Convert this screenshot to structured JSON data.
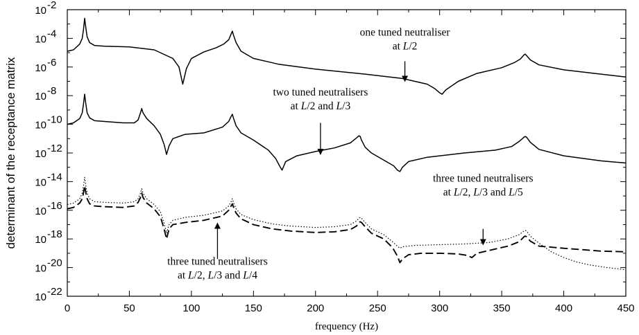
{
  "chart_data": {
    "type": "line",
    "xlabel": "frequency (Hz)",
    "ylabel": "determinant of the receptance matrix",
    "xlim": [
      0,
      450
    ],
    "ylim_exponent": [
      -22,
      -2
    ],
    "y_scale": "log",
    "x_ticks": [
      0,
      50,
      100,
      150,
      200,
      250,
      300,
      350,
      400,
      450
    ],
    "y_tick_exponents": [
      -22,
      -20,
      -18,
      -16,
      -14,
      -12,
      -10,
      -8,
      -6,
      -4,
      -2
    ],
    "y_tick_base": "10",
    "grid": false,
    "series": [
      {
        "style": "solid",
        "x": [
          0,
          5,
          10,
          12,
          13,
          14,
          15,
          16,
          18,
          22,
          30,
          50,
          70,
          85,
          90,
          93,
          96,
          100,
          110,
          120,
          126,
          130,
          132,
          133,
          134,
          136,
          140,
          150,
          170,
          200,
          240,
          270,
          290,
          296,
          300,
          302,
          305,
          315,
          330,
          350,
          360,
          365,
          368,
          369,
          370,
          373,
          380,
          400,
          430,
          450
        ],
        "exp": [
          -4.9,
          -4.8,
          -4.4,
          -4.0,
          -3.4,
          -2.6,
          -3.3,
          -3.9,
          -4.3,
          -4.5,
          -4.55,
          -4.6,
          -4.8,
          -5.4,
          -6.0,
          -7.2,
          -6.1,
          -5.4,
          -4.95,
          -4.65,
          -4.4,
          -4.1,
          -3.7,
          -3.5,
          -3.8,
          -4.3,
          -4.9,
          -5.4,
          -5.8,
          -6.15,
          -6.5,
          -6.8,
          -7.2,
          -7.5,
          -7.8,
          -7.9,
          -7.6,
          -7.0,
          -6.45,
          -6.05,
          -5.7,
          -5.45,
          -5.15,
          -5.1,
          -5.2,
          -5.5,
          -5.85,
          -6.2,
          -6.5,
          -6.7
        ]
      },
      {
        "style": "solid",
        "x": [
          0,
          5,
          10,
          12,
          13,
          14,
          15,
          16,
          18,
          22,
          30,
          45,
          54,
          57,
          59,
          60,
          61,
          64,
          70,
          75,
          78,
          80,
          82,
          85,
          95,
          110,
          125,
          130,
          132,
          133,
          134,
          136,
          140,
          150,
          162,
          168,
          171,
          173,
          176,
          185,
          200,
          215,
          228,
          233,
          235,
          236,
          237,
          240,
          245,
          255,
          263,
          266,
          268,
          270,
          275,
          290,
          320,
          345,
          358,
          364,
          368,
          369,
          370,
          373,
          380,
          400,
          430,
          450
        ],
        "exp": [
          -10.0,
          -9.9,
          -9.6,
          -9.2,
          -8.6,
          -7.9,
          -8.6,
          -9.2,
          -9.55,
          -9.75,
          -9.8,
          -9.9,
          -9.9,
          -9.7,
          -9.2,
          -8.9,
          -9.2,
          -9.6,
          -10.1,
          -10.7,
          -11.4,
          -12.1,
          -11.5,
          -11.0,
          -10.7,
          -10.6,
          -10.2,
          -9.8,
          -9.45,
          -9.3,
          -9.6,
          -10.1,
          -10.6,
          -11.1,
          -11.8,
          -12.4,
          -12.9,
          -13.2,
          -12.6,
          -12.2,
          -11.9,
          -11.65,
          -11.3,
          -10.95,
          -10.8,
          -10.85,
          -11.1,
          -11.6,
          -12.0,
          -12.5,
          -12.9,
          -13.2,
          -13.3,
          -13.0,
          -12.6,
          -12.3,
          -12.0,
          -11.8,
          -11.55,
          -11.2,
          -10.9,
          -10.85,
          -10.9,
          -11.25,
          -11.75,
          -12.2,
          -12.55,
          -12.7
        ]
      },
      {
        "style": "dashed",
        "x": [
          0,
          5,
          10,
          12,
          13,
          14,
          15,
          16,
          18,
          22,
          30,
          45,
          54,
          57,
          59,
          60,
          61,
          64,
          70,
          75,
          78,
          80,
          82,
          85,
          95,
          110,
          125,
          130,
          132,
          133,
          134,
          136,
          140,
          150,
          165,
          180,
          200,
          215,
          228,
          233,
          235,
          236,
          237,
          240,
          245,
          255,
          262,
          266,
          268,
          270,
          275,
          285,
          300,
          315,
          322,
          326,
          330,
          340,
          355,
          364,
          368,
          369,
          370,
          373,
          380,
          400,
          430,
          450
        ],
        "exp": [
          -15.9,
          -15.8,
          -15.5,
          -15.2,
          -14.8,
          -14.3,
          -14.8,
          -15.2,
          -15.55,
          -15.7,
          -15.75,
          -15.8,
          -15.7,
          -15.45,
          -15.1,
          -14.8,
          -15.1,
          -15.5,
          -15.9,
          -16.45,
          -17.3,
          -18.0,
          -17.3,
          -17.0,
          -16.85,
          -16.7,
          -16.4,
          -16.0,
          -15.7,
          -15.55,
          -15.8,
          -16.2,
          -16.6,
          -17.0,
          -17.3,
          -17.45,
          -17.55,
          -17.5,
          -17.35,
          -17.1,
          -16.85,
          -16.8,
          -16.85,
          -17.15,
          -17.6,
          -18.0,
          -18.6,
          -19.2,
          -19.65,
          -19.4,
          -19.1,
          -19.0,
          -19.0,
          -19.05,
          -19.15,
          -19.3,
          -19.0,
          -18.8,
          -18.5,
          -18.2,
          -17.85,
          -17.8,
          -17.85,
          -18.15,
          -18.5,
          -18.65,
          -18.85,
          -18.9
        ]
      },
      {
        "style": "dotted",
        "x": [
          0,
          5,
          10,
          12,
          13,
          14,
          15,
          16,
          18,
          22,
          30,
          45,
          54,
          57,
          59,
          60,
          61,
          64,
          70,
          75,
          78,
          80,
          82,
          85,
          95,
          110,
          125,
          130,
          132,
          133,
          134,
          136,
          140,
          150,
          165,
          180,
          200,
          215,
          228,
          233,
          235,
          236,
          237,
          240,
          245,
          255,
          262,
          266,
          268,
          270,
          280,
          300,
          320,
          340,
          355,
          364,
          368,
          369,
          370,
          373,
          380,
          390,
          400,
          410,
          420,
          435,
          450
        ],
        "exp": [
          -15.6,
          -15.5,
          -15.2,
          -14.8,
          -14.3,
          -13.7,
          -14.3,
          -14.8,
          -15.2,
          -15.4,
          -15.45,
          -15.5,
          -15.4,
          -15.2,
          -14.8,
          -14.5,
          -14.8,
          -15.2,
          -15.6,
          -16.1,
          -16.9,
          -17.6,
          -17.0,
          -16.7,
          -16.5,
          -16.35,
          -16.05,
          -15.7,
          -15.4,
          -15.2,
          -15.5,
          -15.9,
          -16.3,
          -16.65,
          -16.95,
          -17.1,
          -17.2,
          -17.15,
          -17.0,
          -16.75,
          -16.55,
          -16.5,
          -16.55,
          -16.85,
          -17.3,
          -17.7,
          -18.2,
          -18.5,
          -18.65,
          -18.55,
          -18.45,
          -18.4,
          -18.35,
          -18.25,
          -18.0,
          -17.7,
          -17.45,
          -17.4,
          -17.45,
          -17.8,
          -18.3,
          -18.9,
          -19.3,
          -19.6,
          -19.8,
          -20.0,
          -20.15
        ]
      }
    ],
    "annotations": [
      {
        "lines": [
          [
            {
              "t": "one tuned neutraliser"
            }
          ],
          [
            {
              "t": "at "
            },
            {
              "t": "L",
              "it": true
            },
            {
              "t": "/2"
            }
          ]
        ],
        "text_x": 272,
        "text_y_exp": -3.8,
        "arrow_x": 272,
        "arrow_from_exp": -5.6,
        "arrow_to_exp": -7.0
      },
      {
        "lines": [
          [
            {
              "t": "two tuned neutralisers"
            }
          ],
          [
            {
              "t": "at "
            },
            {
              "t": "L",
              "it": true
            },
            {
              "t": "/2 and "
            },
            {
              "t": "L",
              "it": true
            },
            {
              "t": "/3"
            }
          ]
        ],
        "text_x": 204,
        "text_y_exp": -8.0,
        "arrow_x": 204,
        "arrow_from_exp": -9.9,
        "arrow_to_exp": -12.1
      },
      {
        "lines": [
          [
            {
              "t": "three tuned neutralisers"
            }
          ],
          [
            {
              "t": "at "
            },
            {
              "t": "L",
              "it": true
            },
            {
              "t": "/2, "
            },
            {
              "t": "L",
              "it": true
            },
            {
              "t": "/3 and "
            },
            {
              "t": "L",
              "it": true
            },
            {
              "t": "/5"
            }
          ]
        ],
        "text_x": 335,
        "text_y_exp": -14.0,
        "arrow_x": 335,
        "arrow_from_exp": -17.3,
        "arrow_to_exp": -18.4
      },
      {
        "lines": [
          [
            {
              "t": "three tuned neutralisers"
            }
          ],
          [
            {
              "t": "at "
            },
            {
              "t": "L",
              "it": true
            },
            {
              "t": "/2, "
            },
            {
              "t": "L",
              "it": true
            },
            {
              "t": "/3 and "
            },
            {
              "t": "L",
              "it": true
            },
            {
              "t": "/4"
            }
          ]
        ],
        "text_x": 121,
        "text_y_exp": -19.8,
        "arrow_x": 121,
        "arrow_from_exp": -19.4,
        "arrow_to_exp": -16.9
      }
    ]
  }
}
